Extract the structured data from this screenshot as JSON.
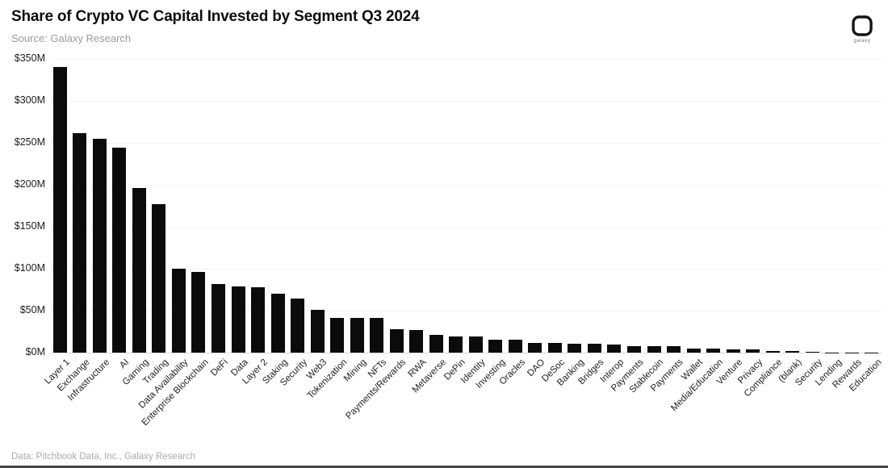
{
  "header": {
    "title": "Share of Crypto VC Capital Invested by Segment Q3 2024",
    "subtitle": "Source: Galaxy Research",
    "logo_label": "galaxy"
  },
  "footer": {
    "attribution": "Data: Pitchbook Data, Inc., Galaxy Research"
  },
  "colors": {
    "bar": "#0b0b0b",
    "gridline": "#f3f3f3",
    "baseline": "#d9d9d9",
    "subtitle": "#9b9b9b"
  },
  "chart_data": {
    "type": "bar",
    "title": "Share of Crypto VC Capital Invested by Segment Q3 2024",
    "xlabel": "",
    "ylabel": "",
    "ylim": [
      0,
      350
    ],
    "grid": true,
    "ytick_values": [
      0,
      50,
      100,
      150,
      200,
      250,
      300,
      350
    ],
    "ytick_labels": [
      "$0M",
      "$50M",
      "$100M",
      "$150M",
      "$200M",
      "$250M",
      "$300M",
      "$350M"
    ],
    "categories": [
      "Layer 1",
      "Exchange",
      "Infrastructure",
      "AI",
      "Gaming",
      "Trading",
      "Data Availability",
      "Enterprise Blockchain",
      "DeFi",
      "Data",
      "Layer 2",
      "Staking",
      "Security",
      "Web3",
      "Tokenization",
      "Mining",
      "NFTs",
      "Payments/Rewards",
      "RWA",
      "Metaverse",
      "DePin",
      "Identity",
      "Investing",
      "Oracles",
      "DAO",
      "DeSoc",
      "Banking",
      "Bridges",
      "Interop",
      "Payments",
      "Stablecoin",
      "Payments",
      "Wallet",
      "Media/Education",
      "Venture",
      "Privacy",
      "Compliance",
      "(blank)",
      "Security",
      "Lending",
      "Rewards",
      "Education"
    ],
    "values": [
      340,
      262,
      255,
      244,
      196,
      177,
      100,
      96,
      82,
      79,
      78,
      70,
      64,
      51,
      41,
      41,
      41,
      28,
      27,
      21,
      19,
      19,
      15,
      15,
      12,
      12,
      11,
      11,
      10,
      8,
      7.5,
      7.5,
      5,
      5,
      4,
      3.5,
      2,
      2,
      1,
      0.5,
      0.3,
      0.2
    ],
    "values_unit": "USD millions"
  }
}
